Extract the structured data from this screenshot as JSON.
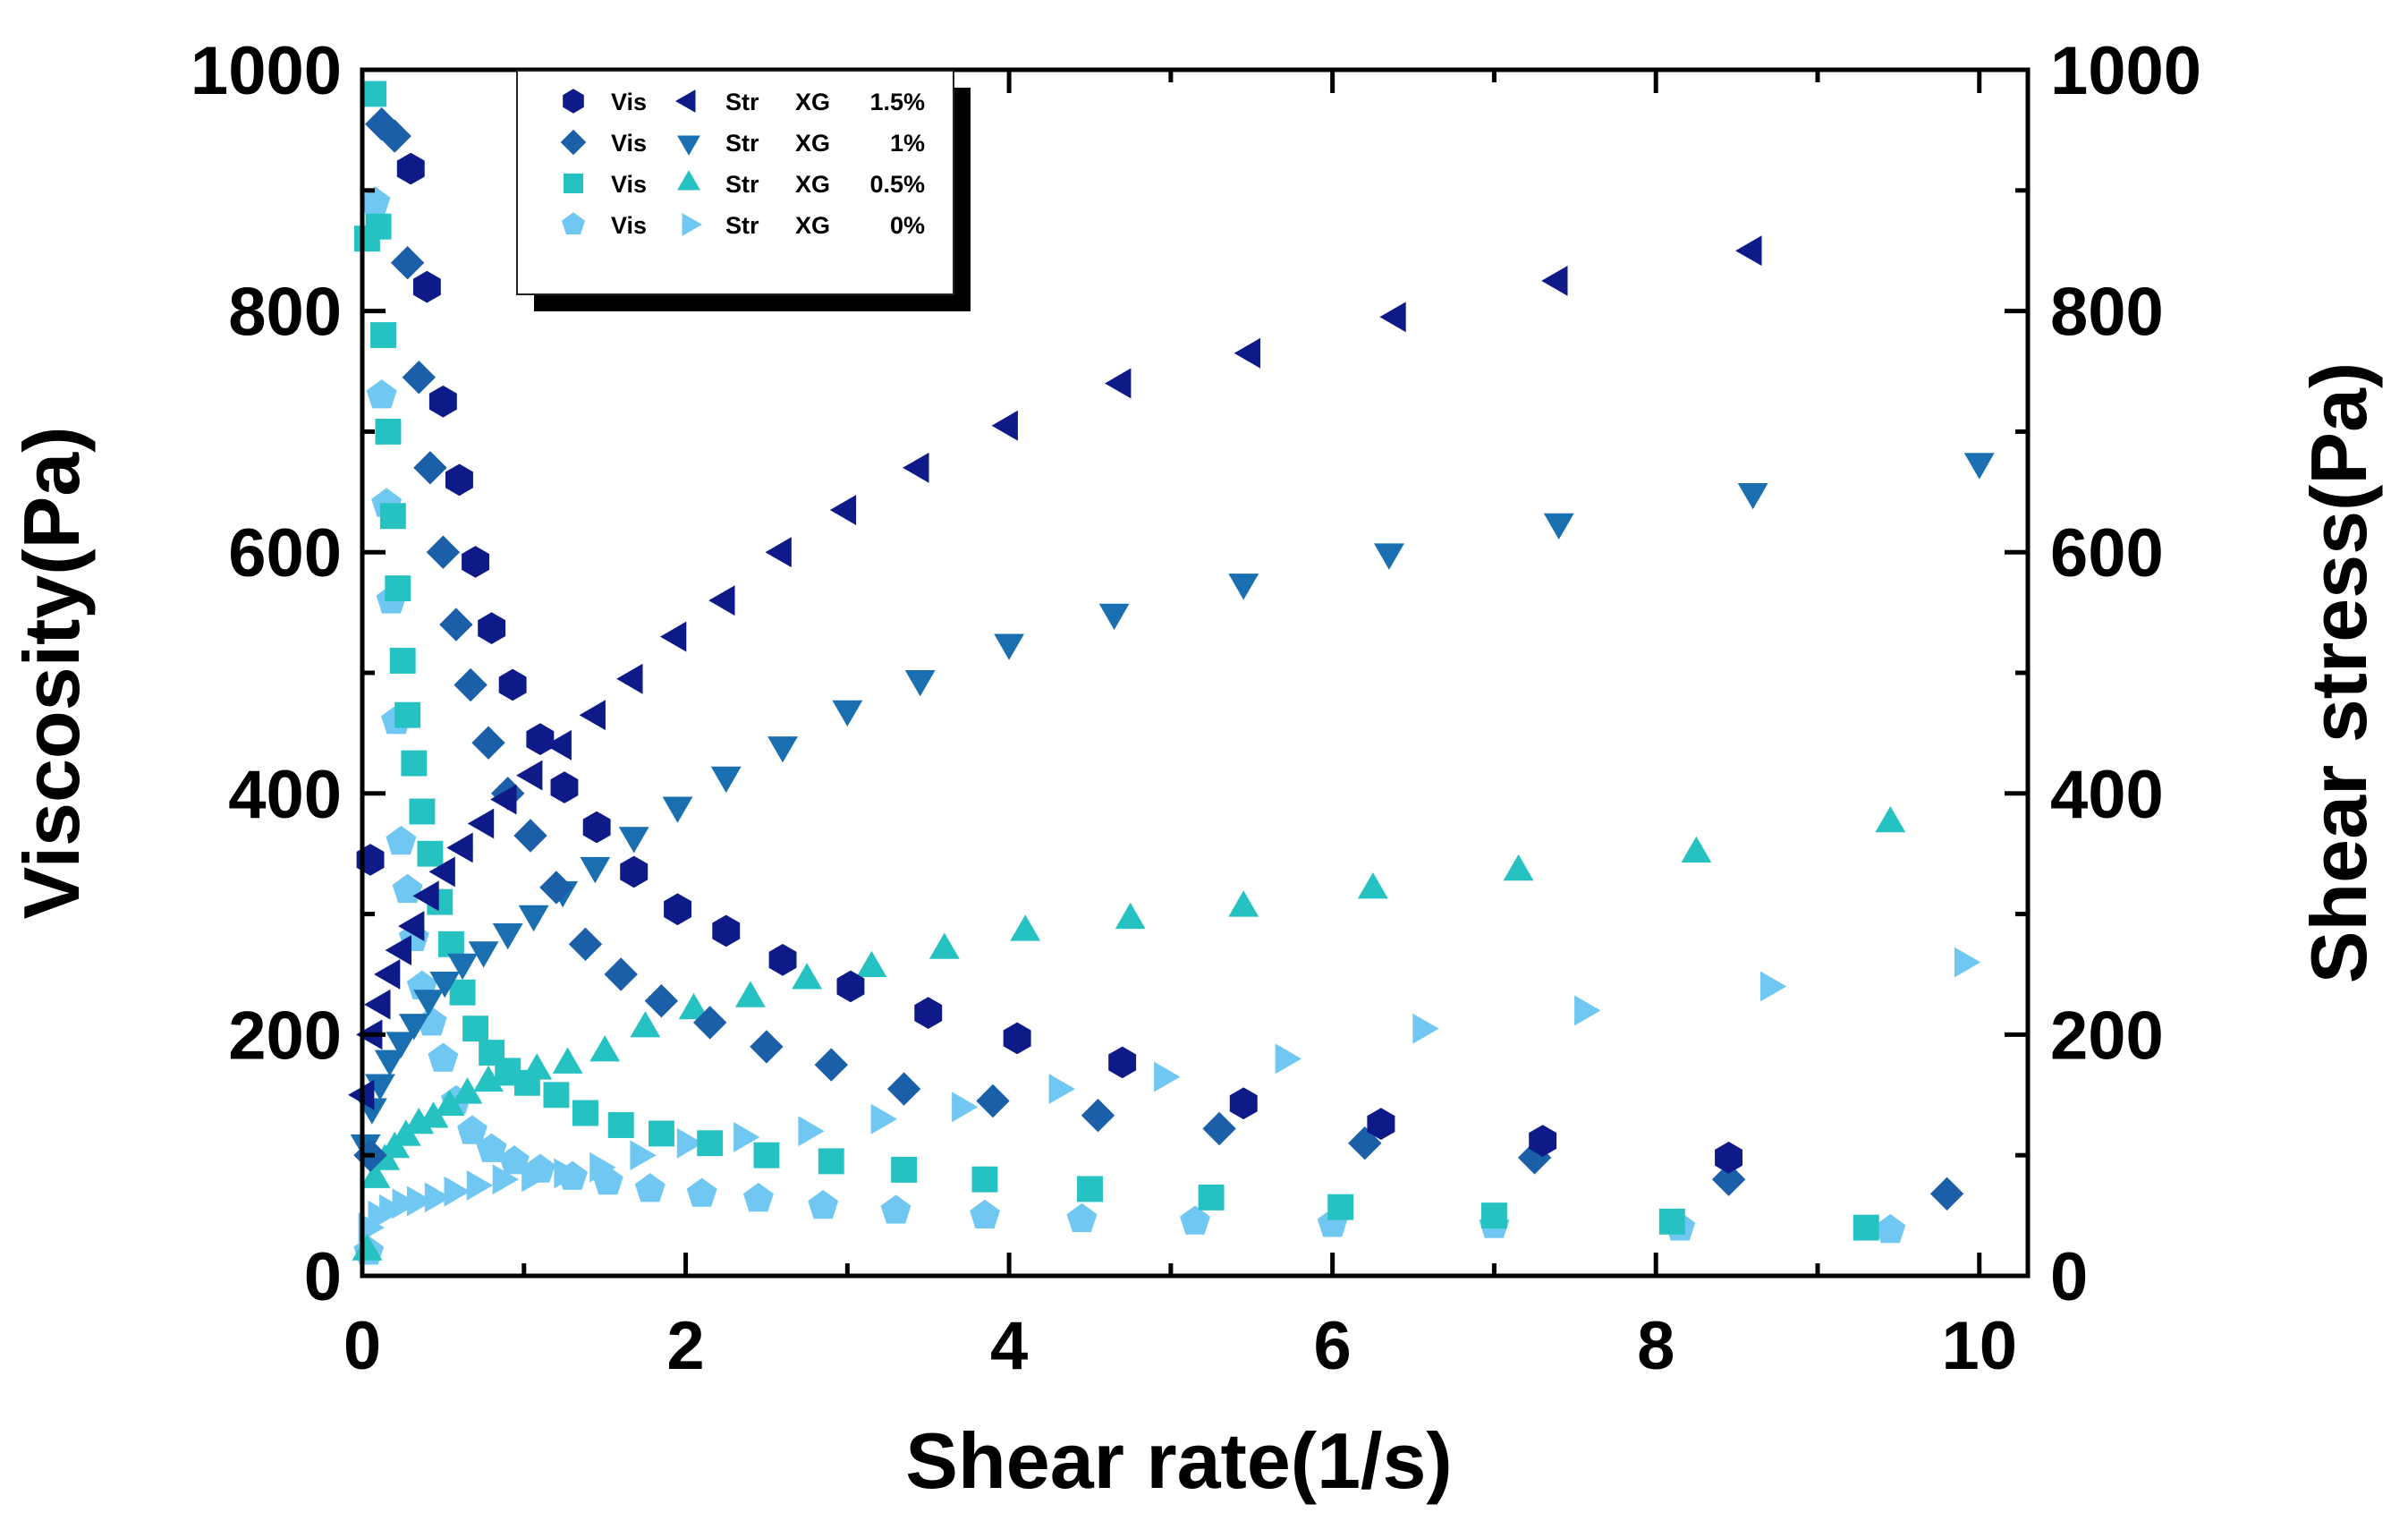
{
  "chart_data": {
    "type": "scatter",
    "title": "",
    "xlabel": "Shear rate(1/s)",
    "ylabel_left": "Viscosity(Pa)",
    "ylabel_right": "Shear stress(Pa)",
    "xlim": [
      0,
      10.3
    ],
    "ylim_left": [
      0,
      1000
    ],
    "ylim_right": [
      0,
      1000
    ],
    "grid": false,
    "legend_position": "top-left",
    "x_ticks": [
      "0",
      "2",
      "4",
      "6",
      "8",
      "10"
    ],
    "y_ticks_left": [
      "0",
      "200",
      "400",
      "600",
      "800",
      "1000"
    ],
    "y_ticks_right": [
      "0",
      "200",
      "400",
      "600",
      "800",
      "1000"
    ],
    "series": [
      {
        "name": "Vis XG 1.5%",
        "legend_kind": "Vis",
        "legend_sample": "XG",
        "legend_conc": "1.5%",
        "axis": "left",
        "marker": "hexagon",
        "color": "#0d1a87",
        "x": [
          0.05,
          0.3,
          0.4,
          0.5,
          0.6,
          0.7,
          0.8,
          0.93,
          1.1,
          1.25,
          1.45,
          1.68,
          1.95,
          2.25,
          2.6,
          3.02,
          3.5,
          4.05,
          4.7,
          5.45,
          6.3,
          7.3,
          8.45
        ],
        "y": [
          345,
          918,
          820,
          725,
          660,
          592,
          537,
          490,
          445,
          405,
          372,
          335,
          304,
          286,
          262,
          240,
          218,
          197,
          177,
          143,
          126,
          112,
          98
        ]
      },
      {
        "name": "Str XG 1.5%",
        "legend_kind": "Str",
        "legend_sample": "XG",
        "legend_conc": "1.5%",
        "axis": "right",
        "marker": "triangle-left",
        "color": "#0d1a87",
        "x": [
          0.02,
          0.07,
          0.12,
          0.18,
          0.25,
          0.33,
          0.42,
          0.52,
          0.63,
          0.76,
          0.9,
          1.06,
          1.24,
          1.45,
          1.68,
          1.95,
          2.25,
          2.6,
          3.0,
          3.45,
          4.0,
          4.7,
          5.5,
          6.4,
          7.4,
          8.6
        ],
        "y": [
          150,
          200,
          225,
          250,
          270,
          290,
          315,
          335,
          355,
          375,
          395,
          415,
          440,
          465,
          495,
          530,
          560,
          600,
          635,
          670,
          705,
          740,
          765,
          795,
          825,
          850
        ]
      },
      {
        "name": "Vis XG 1%",
        "legend_kind": "Vis",
        "legend_sample": "XG",
        "legend_conc": "1%",
        "axis": "left",
        "marker": "diamond",
        "color": "#1a5fa8",
        "x": [
          0.05,
          0.12,
          0.2,
          0.28,
          0.35,
          0.42,
          0.5,
          0.58,
          0.67,
          0.78,
          0.9,
          1.04,
          1.2,
          1.38,
          1.6,
          1.85,
          2.15,
          2.5,
          2.9,
          3.35,
          3.9,
          4.55,
          5.3,
          6.2,
          7.25,
          8.45,
          9.8
        ],
        "y": [
          100,
          955,
          945,
          840,
          745,
          670,
          600,
          540,
          490,
          442,
          400,
          365,
          322,
          275,
          250,
          228,
          210,
          190,
          175,
          155,
          145,
          133,
          122,
          110,
          98,
          80,
          68
        ]
      },
      {
        "name": "Str XG 1%",
        "legend_kind": "Str",
        "legend_sample": "XG",
        "legend_conc": "1%",
        "axis": "right",
        "marker": "triangle-down",
        "color": "#1a6fb0",
        "x": [
          0.02,
          0.06,
          0.11,
          0.17,
          0.24,
          0.32,
          0.41,
          0.51,
          0.62,
          0.75,
          0.9,
          1.06,
          1.24,
          1.44,
          1.68,
          1.95,
          2.25,
          2.6,
          3.0,
          3.45,
          4.0,
          4.65,
          5.45,
          6.35,
          7.4,
          8.6,
          10.0
        ],
        "y": [
          110,
          140,
          160,
          180,
          195,
          210,
          230,
          245,
          260,
          270,
          285,
          300,
          320,
          340,
          365,
          390,
          415,
          440,
          470,
          495,
          525,
          550,
          575,
          600,
          625,
          650,
          675
        ]
      },
      {
        "name": "Vis XG 0.5%",
        "legend_kind": "Vis",
        "legend_sample": "XG",
        "legend_conc": "0.5%",
        "axis": "left",
        "marker": "square",
        "color": "#26c2c2",
        "x": [
          0.03,
          0.07,
          0.1,
          0.13,
          0.16,
          0.19,
          0.22,
          0.25,
          0.28,
          0.32,
          0.37,
          0.42,
          0.48,
          0.55,
          0.62,
          0.7,
          0.8,
          0.9,
          1.02,
          1.2,
          1.38,
          1.6,
          1.85,
          2.15,
          2.5,
          2.9,
          3.35,
          3.85,
          4.5,
          5.25,
          6.05,
          7.0,
          8.1,
          9.3
        ],
        "y": [
          860,
          980,
          870,
          780,
          700,
          630,
          570,
          510,
          465,
          425,
          385,
          350,
          310,
          275,
          235,
          205,
          185,
          170,
          160,
          150,
          135,
          125,
          118,
          110,
          100,
          95,
          88,
          80,
          72,
          65,
          57,
          50,
          45,
          40
        ]
      },
      {
        "name": "Str XG 0.5%",
        "legend_kind": "Str",
        "legend_sample": "XG",
        "legend_conc": "0.5%",
        "axis": "right",
        "marker": "triangle-up",
        "color": "#26c2c2",
        "x": [
          0.03,
          0.08,
          0.14,
          0.2,
          0.27,
          0.35,
          0.44,
          0.54,
          0.65,
          0.78,
          0.92,
          1.08,
          1.27,
          1.5,
          1.75,
          2.05,
          2.4,
          2.75,
          3.15,
          3.6,
          4.1,
          4.75,
          5.45,
          6.25,
          7.15,
          8.25,
          9.45
        ],
        "y": [
          20,
          80,
          95,
          105,
          115,
          125,
          130,
          140,
          150,
          160,
          165,
          170,
          175,
          185,
          205,
          220,
          230,
          245,
          255,
          270,
          285,
          295,
          305,
          320,
          335,
          350,
          375
        ]
      },
      {
        "name": "Vis XG 0%",
        "legend_kind": "Vis",
        "legend_sample": "XG",
        "legend_conc": "0%",
        "axis": "left",
        "marker": "pentagon",
        "color": "#70c8f2",
        "x": [
          0.04,
          0.08,
          0.12,
          0.15,
          0.18,
          0.21,
          0.24,
          0.28,
          0.32,
          0.37,
          0.43,
          0.5,
          0.58,
          0.68,
          0.8,
          0.94,
          1.1,
          1.3,
          1.52,
          1.78,
          2.1,
          2.45,
          2.85,
          3.3,
          3.85,
          4.45,
          5.15,
          6.0,
          7.0,
          8.15,
          9.45
        ],
        "y": [
          20,
          890,
          730,
          640,
          560,
          460,
          360,
          320,
          280,
          240,
          210,
          180,
          145,
          120,
          105,
          95,
          88,
          82,
          78,
          72,
          68,
          64,
          58,
          54,
          50,
          47,
          45,
          43,
          42,
          40,
          38
        ]
      },
      {
        "name": "Str XG 0%",
        "legend_kind": "Str",
        "legend_sample": "XG",
        "legend_conc": "0%",
        "axis": "right",
        "marker": "triangle-right",
        "color": "#70c8f2",
        "x": [
          0.03,
          0.09,
          0.16,
          0.24,
          0.33,
          0.44,
          0.56,
          0.7,
          0.86,
          1.04,
          1.24,
          1.46,
          1.71,
          2.0,
          2.35,
          2.75,
          3.2,
          3.7,
          4.3,
          4.95,
          5.7,
          6.55,
          7.55,
          8.7,
          9.9
        ],
        "y": [
          40,
          50,
          55,
          60,
          62,
          65,
          70,
          75,
          80,
          82,
          85,
          90,
          100,
          110,
          115,
          120,
          130,
          140,
          155,
          165,
          180,
          205,
          220,
          240,
          260
        ]
      }
    ]
  }
}
